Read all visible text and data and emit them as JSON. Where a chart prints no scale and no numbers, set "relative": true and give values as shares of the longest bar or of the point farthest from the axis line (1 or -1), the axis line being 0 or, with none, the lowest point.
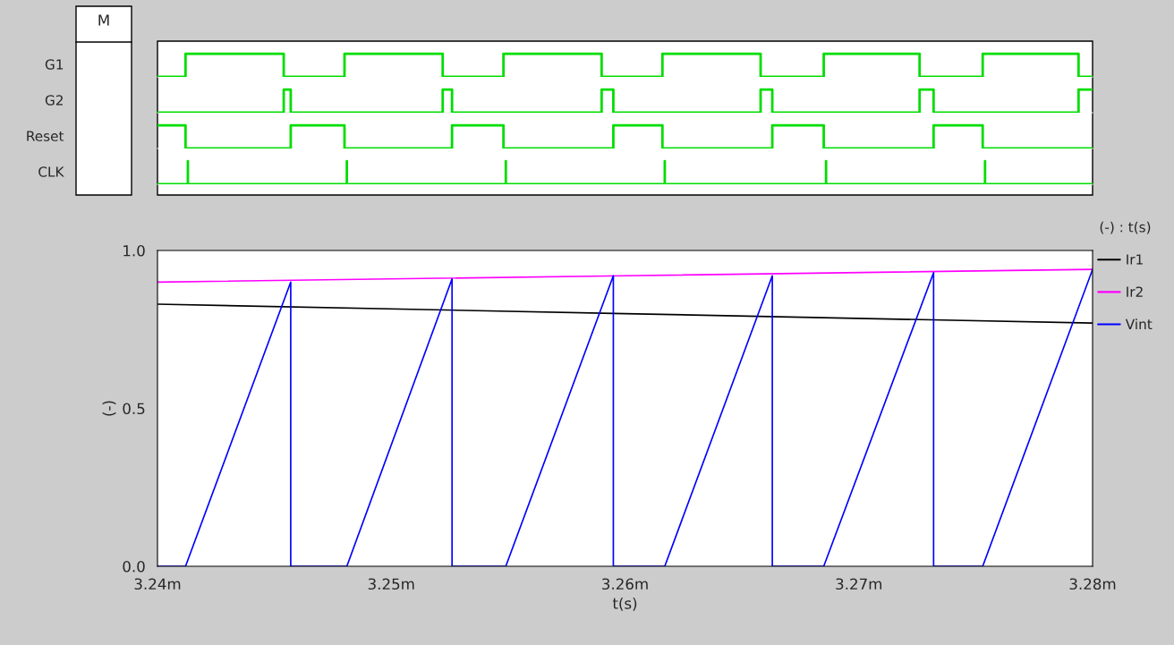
{
  "chart_data": [
    {
      "type": "line",
      "relative": true,
      "tick_labels": false,
      "xlim": [
        3.24,
        3.28
      ],
      "annotations": [
        "M"
      ],
      "series": [
        {
          "name": "G1",
          "color": "#00dd00",
          "x": [
            3.24,
            3.2412,
            3.2412,
            3.2454,
            3.2454,
            3.248,
            3.248,
            3.2522,
            3.2522,
            3.2548,
            3.2548,
            3.259,
            3.259,
            3.2616,
            3.2616,
            3.2658,
            3.2658,
            3.2685,
            3.2685,
            3.2726,
            3.2726,
            3.2753,
            3.2753,
            3.2794,
            3.2794,
            3.28
          ],
          "values": [
            0,
            0,
            1,
            1,
            0,
            0,
            1,
            1,
            0,
            0,
            1,
            1,
            0,
            0,
            1,
            1,
            0,
            0,
            1,
            1,
            0,
            0,
            1,
            1,
            0,
            0
          ]
        }
      ]
    },
    {
      "type": "line",
      "relative": true,
      "tick_labels": false,
      "xlim": [
        3.24,
        3.28
      ],
      "series": [
        {
          "name": "G2",
          "color": "#00dd00",
          "x": [
            3.24,
            3.2454,
            3.2454,
            3.2457,
            3.2457,
            3.2522,
            3.2522,
            3.2526,
            3.2526,
            3.259,
            3.259,
            3.2595,
            3.2595,
            3.2658,
            3.2658,
            3.2663,
            3.2663,
            3.2726,
            3.2726,
            3.2732,
            3.2732,
            3.2794,
            3.2794,
            3.28
          ],
          "values": [
            0,
            0,
            1,
            1,
            0,
            0,
            1,
            1,
            0,
            0,
            1,
            1,
            0,
            0,
            1,
            1,
            0,
            0,
            1,
            1,
            0,
            0,
            1,
            1
          ]
        }
      ]
    },
    {
      "type": "line",
      "relative": true,
      "tick_labels": false,
      "xlim": [
        3.24,
        3.28
      ],
      "series": [
        {
          "name": "Reset",
          "color": "#00dd00",
          "x": [
            3.24,
            3.2412,
            3.2412,
            3.2457,
            3.2457,
            3.248,
            3.248,
            3.2526,
            3.2526,
            3.2548,
            3.2548,
            3.2595,
            3.2595,
            3.2616,
            3.2616,
            3.2663,
            3.2663,
            3.2685,
            3.2685,
            3.2732,
            3.2732,
            3.2753,
            3.2753,
            3.28
          ],
          "values": [
            1,
            1,
            0,
            0,
            1,
            1,
            0,
            0,
            1,
            1,
            0,
            0,
            1,
            1,
            0,
            0,
            1,
            1,
            0,
            0,
            1,
            1,
            0,
            0
          ]
        }
      ]
    },
    {
      "type": "line",
      "relative": true,
      "tick_labels": false,
      "xlim": [
        3.24,
        3.28
      ],
      "series": [
        {
          "name": "CLK",
          "color": "#00dd00",
          "x": [
            3.24,
            3.2413,
            3.2413,
            3.2413,
            3.2481,
            3.2481,
            3.2481,
            3.2549,
            3.2549,
            3.2549,
            3.2617,
            3.2617,
            3.2617,
            3.2686,
            3.2686,
            3.2686,
            3.2754,
            3.2754,
            3.2754,
            3.28
          ],
          "values": [
            0,
            0,
            1,
            0,
            0,
            1,
            0,
            0,
            1,
            0,
            0,
            1,
            0,
            0,
            1,
            0,
            0,
            1,
            0,
            0
          ]
        }
      ]
    },
    {
      "type": "line",
      "xlabel": "t(s)",
      "ylabel": "(-)",
      "legend_title": "(-) : t(s)",
      "legend": "right",
      "xlim": [
        3.24,
        3.28
      ],
      "xticks": [
        {
          "value": 3.24,
          "label": "3.24m"
        },
        {
          "value": 3.25,
          "label": "3.25m"
        },
        {
          "value": 3.26,
          "label": "3.26m"
        },
        {
          "value": 3.27,
          "label": "3.27m"
        },
        {
          "value": 3.28,
          "label": "3.28m"
        }
      ],
      "ylim": [
        0,
        1
      ],
      "yticks": [
        {
          "value": 0,
          "label": "0.0"
        },
        {
          "value": 0.5,
          "label": "0.5"
        },
        {
          "value": 1,
          "label": "1.0"
        }
      ],
      "series": [
        {
          "name": "Ir1",
          "color": "#000000",
          "x": [
            3.24,
            3.26,
            3.28
          ],
          "values": [
            0.83,
            0.8,
            0.77
          ]
        },
        {
          "name": "Ir2",
          "color": "#ff00ff",
          "x": [
            3.24,
            3.26,
            3.28
          ],
          "values": [
            0.9,
            0.92,
            0.94
          ]
        },
        {
          "name": "Vint",
          "color": "#0000ff",
          "x": [
            3.24,
            3.2412,
            3.2457,
            3.2457,
            3.2481,
            3.2526,
            3.2526,
            3.2549,
            3.2595,
            3.2595,
            3.2617,
            3.2663,
            3.2663,
            3.2685,
            3.2732,
            3.2732,
            3.2753,
            3.28
          ],
          "values": [
            0,
            0,
            0.9,
            0,
            0,
            0.91,
            0,
            0,
            0.92,
            0,
            0,
            0.92,
            0,
            0,
            0.93,
            0,
            0,
            0.94
          ]
        }
      ]
    }
  ]
}
